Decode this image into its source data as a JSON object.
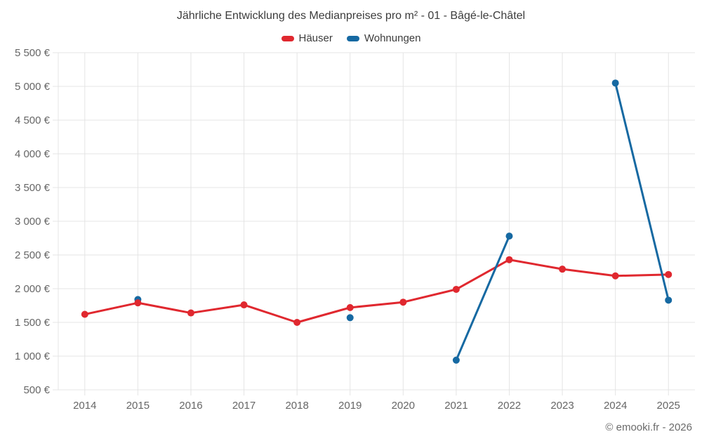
{
  "header": {
    "title": "Jährliche Entwicklung des Medianpreises pro m² - 01 - Bâgé-le-Châtel"
  },
  "chart_data": {
    "type": "line",
    "title": "Jährliche Entwicklung des Medianpreises pro m² - 01 - Bâgé-le-Châtel",
    "categories": [
      "2014",
      "2015",
      "2016",
      "2017",
      "2018",
      "2019",
      "2020",
      "2021",
      "2022",
      "2023",
      "2024",
      "2025"
    ],
    "series": [
      {
        "name": "Häuser",
        "color": "#e0282f",
        "values": [
          1620,
          1790,
          1640,
          1760,
          1500,
          1720,
          1800,
          1990,
          2430,
          2290,
          2190,
          2210
        ]
      },
      {
        "name": "Wohnungen",
        "color": "#1669a2",
        "values": [
          null,
          1840,
          null,
          null,
          null,
          1570,
          null,
          940,
          2780,
          null,
          5050,
          1830
        ]
      }
    ],
    "ylim": [
      500,
      5500
    ],
    "yticks": [
      500,
      1000,
      1500,
      2000,
      2500,
      3000,
      3500,
      4000,
      4500,
      5000,
      5500
    ],
    "ytick_labels": [
      "500 €",
      "1 000 €",
      "1 500 €",
      "2 000 €",
      "2 500 €",
      "3 000 €",
      "3 500 €",
      "4 000 €",
      "4 500 €",
      "5 000 €",
      "5 500 €"
    ],
    "xlabel": "",
    "ylabel": "",
    "grid": true,
    "legend_position": "top",
    "marker": "circle"
  },
  "colors": {
    "grid": "#e4e4e4",
    "tick_labels": "#666666",
    "title_text": "#3c3c3c",
    "footer_text": "#6b6b6b",
    "background": "#ffffff"
  },
  "footer": {
    "copyright": "© emooki.fr - 2026"
  }
}
